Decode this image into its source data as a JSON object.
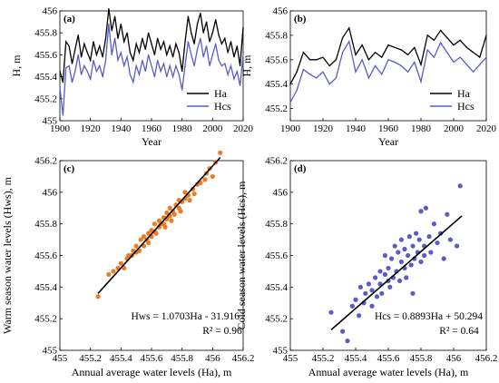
{
  "chart_data": [
    {
      "panel": "(a)",
      "type": "line",
      "xlabel": "Year",
      "ylabel": "H, m",
      "xlim": [
        1900,
        2020
      ],
      "ylim": [
        455,
        456
      ],
      "xticks": [
        1900,
        1920,
        1940,
        1960,
        1980,
        2000,
        2020
      ],
      "yticks": [
        455,
        455.2,
        455.4,
        455.6,
        455.8,
        456
      ],
      "legend_position": "bottom-right",
      "series": [
        {
          "name": "Ha",
          "color": "#000000",
          "x": [
            1900,
            1902,
            1904,
            1906,
            1908,
            1910,
            1912,
            1914,
            1916,
            1918,
            1920,
            1922,
            1924,
            1926,
            1928,
            1930,
            1932,
            1934,
            1936,
            1938,
            1940,
            1942,
            1944,
            1946,
            1948,
            1950,
            1952,
            1954,
            1956,
            1958,
            1960,
            1962,
            1964,
            1966,
            1968,
            1970,
            1972,
            1974,
            1976,
            1978,
            1980,
            1982,
            1984,
            1986,
            1988,
            1990,
            1992,
            1994,
            1996,
            1998,
            2000,
            2002,
            2004,
            2006,
            2008,
            2010,
            2012,
            2014,
            2016,
            2018,
            2020
          ],
          "values": [
            455.45,
            455.35,
            455.72,
            455.68,
            455.52,
            455.65,
            455.78,
            455.58,
            455.7,
            455.62,
            455.55,
            455.72,
            455.6,
            455.68,
            455.58,
            455.75,
            456.02,
            455.82,
            455.95,
            455.75,
            455.88,
            455.72,
            455.8,
            455.62,
            455.55,
            455.7,
            455.62,
            455.75,
            455.65,
            455.8,
            455.7,
            455.6,
            455.75,
            455.65,
            455.72,
            455.6,
            455.68,
            455.58,
            455.7,
            455.62,
            455.45,
            455.72,
            455.95,
            455.8,
            455.7,
            455.88,
            455.98,
            455.8,
            455.9,
            455.72,
            455.8,
            455.92,
            455.78,
            455.7,
            455.75,
            455.62,
            455.72,
            455.58,
            455.68,
            455.5,
            455.85
          ]
        },
        {
          "name": "Hcs",
          "color": "#5b5bc7",
          "x": [
            1900,
            1902,
            1904,
            1906,
            1908,
            1910,
            1912,
            1914,
            1916,
            1918,
            1920,
            1922,
            1924,
            1926,
            1928,
            1930,
            1932,
            1934,
            1936,
            1938,
            1940,
            1942,
            1944,
            1946,
            1948,
            1950,
            1952,
            1954,
            1956,
            1958,
            1960,
            1962,
            1964,
            1966,
            1968,
            1970,
            1972,
            1974,
            1976,
            1978,
            1980,
            1982,
            1984,
            1986,
            1988,
            1990,
            1992,
            1994,
            1996,
            1998,
            2000,
            2002,
            2004,
            2006,
            2008,
            2010,
            2012,
            2014,
            2016,
            2018,
            2020
          ],
          "values": [
            455.3,
            455.05,
            455.48,
            455.5,
            455.35,
            455.45,
            455.6,
            455.42,
            455.5,
            455.45,
            455.38,
            455.55,
            455.45,
            455.5,
            455.4,
            455.55,
            455.88,
            455.6,
            455.75,
            455.55,
            455.62,
            455.5,
            455.58,
            455.42,
            455.35,
            455.5,
            455.42,
            455.55,
            455.45,
            455.6,
            455.5,
            455.4,
            455.55,
            455.45,
            455.52,
            455.4,
            455.5,
            455.4,
            455.5,
            455.42,
            455.28,
            455.5,
            455.72,
            455.6,
            455.5,
            455.65,
            455.75,
            455.58,
            455.68,
            455.5,
            455.6,
            455.7,
            455.55,
            455.5,
            455.52,
            455.42,
            455.5,
            455.38,
            455.45,
            455.32,
            455.6
          ]
        }
      ]
    },
    {
      "panel": "(b)",
      "type": "line",
      "xlabel": "Year",
      "ylabel": "H, m",
      "xlim": [
        1900,
        2020
      ],
      "ylim": [
        455.1,
        456
      ],
      "xticks": [
        1900,
        1920,
        1940,
        1960,
        1980,
        2000,
        2020
      ],
      "yticks": [
        455.2,
        455.4,
        455.6,
        455.8,
        456
      ],
      "legend_position": "bottom-right",
      "series": [
        {
          "name": "Ha",
          "color": "#000000",
          "x": [
            1900,
            1904,
            1908,
            1912,
            1916,
            1920,
            1924,
            1928,
            1932,
            1936,
            1940,
            1944,
            1948,
            1952,
            1956,
            1960,
            1964,
            1968,
            1972,
            1976,
            1980,
            1984,
            1988,
            1992,
            1996,
            2000,
            2004,
            2008,
            2012,
            2016,
            2020
          ],
          "values": [
            455.4,
            455.5,
            455.66,
            455.6,
            455.6,
            455.62,
            455.55,
            455.6,
            455.78,
            455.86,
            455.64,
            455.72,
            455.6,
            455.66,
            455.62,
            455.72,
            455.7,
            455.68,
            455.64,
            455.7,
            455.56,
            455.8,
            455.76,
            455.84,
            455.78,
            455.72,
            455.76,
            455.7,
            455.66,
            455.62,
            455.8
          ]
        },
        {
          "name": "Hcs",
          "color": "#5b5bc7",
          "x": [
            1900,
            1904,
            1908,
            1912,
            1916,
            1920,
            1924,
            1928,
            1932,
            1936,
            1940,
            1944,
            1948,
            1952,
            1956,
            1960,
            1964,
            1968,
            1972,
            1976,
            1980,
            1984,
            1988,
            1992,
            1996,
            2000,
            2004,
            2008,
            2012,
            2016,
            2020
          ],
          "values": [
            455.25,
            455.35,
            455.52,
            455.48,
            455.45,
            455.5,
            455.4,
            455.45,
            455.66,
            455.75,
            455.5,
            455.6,
            455.45,
            455.55,
            455.48,
            455.6,
            455.58,
            455.55,
            455.5,
            455.58,
            455.42,
            455.68,
            455.62,
            455.74,
            455.66,
            455.58,
            455.62,
            455.56,
            455.5,
            455.56,
            455.62
          ]
        }
      ]
    },
    {
      "panel": "(c)",
      "type": "scatter",
      "xlabel": "Annual average water levels (Ha), m",
      "ylabel": "Warm season water levels (Hws), m",
      "xlim": [
        455,
        456.2
      ],
      "ylim": [
        455,
        456.2
      ],
      "xticks": [
        455,
        455.2,
        455.4,
        455.6,
        455.8,
        456,
        456.2
      ],
      "yticks": [
        455,
        455.2,
        455.4,
        455.6,
        455.8,
        456,
        456.2
      ],
      "color": "#ee7a22",
      "equation": "Hws = 1.0703Ha - 31.916",
      "r2": "R² = 0.96",
      "fit": {
        "x": [
          455.25,
          456.05
        ],
        "y": [
          455.36,
          456.22
        ]
      },
      "x": [
        455.25,
        455.32,
        455.35,
        455.38,
        455.4,
        455.42,
        455.44,
        455.45,
        455.47,
        455.48,
        455.5,
        455.5,
        455.52,
        455.53,
        455.55,
        455.55,
        455.57,
        455.58,
        455.58,
        455.6,
        455.6,
        455.62,
        455.62,
        455.63,
        455.65,
        455.65,
        455.66,
        455.68,
        455.68,
        455.69,
        455.7,
        455.7,
        455.72,
        455.72,
        455.73,
        455.74,
        455.75,
        455.76,
        455.78,
        455.78,
        455.79,
        455.8,
        455.82,
        455.82,
        455.84,
        455.85,
        455.87,
        455.88,
        455.9,
        455.92,
        455.95,
        455.96,
        455.98,
        456.0,
        456.02,
        456.05
      ],
      "y": [
        455.34,
        455.48,
        455.5,
        455.52,
        455.55,
        455.52,
        455.58,
        455.6,
        455.6,
        455.63,
        455.62,
        455.66,
        455.63,
        455.7,
        455.66,
        455.72,
        455.7,
        455.74,
        455.68,
        455.72,
        455.76,
        455.75,
        455.8,
        455.74,
        455.78,
        455.82,
        455.8,
        455.8,
        455.84,
        455.78,
        455.83,
        455.87,
        455.85,
        455.9,
        455.82,
        455.88,
        455.86,
        455.92,
        455.9,
        455.95,
        455.88,
        455.94,
        455.96,
        456.0,
        455.98,
        455.95,
        456.02,
        455.99,
        456.05,
        456.06,
        456.08,
        456.12,
        456.15,
        456.1,
        456.19,
        456.25
      ]
    },
    {
      "panel": "(d)",
      "type": "scatter",
      "xlabel": "Annual average water levels (Ha), m",
      "ylabel": "Cold season water levels (Hcs), m",
      "xlim": [
        455,
        456.2
      ],
      "ylim": [
        455,
        456.2
      ],
      "xticks": [
        455,
        455.2,
        455.4,
        455.6,
        455.8,
        456,
        456.2
      ],
      "yticks": [
        455,
        455.2,
        455.4,
        455.6,
        455.8,
        456,
        456.2
      ],
      "color": "#5b5bc7",
      "equation": "Hcs = 0.8893Ha + 50.294",
      "r2": "R² = 0.64",
      "fit": {
        "x": [
          455.25,
          456.05
        ],
        "y": [
          455.13,
          455.85
        ]
      },
      "x": [
        455.25,
        455.32,
        455.35,
        455.38,
        455.4,
        455.42,
        455.43,
        455.45,
        455.46,
        455.48,
        455.5,
        455.5,
        455.52,
        455.53,
        455.55,
        455.55,
        455.56,
        455.58,
        455.58,
        455.6,
        455.6,
        455.61,
        455.62,
        455.63,
        455.64,
        455.65,
        455.66,
        455.67,
        455.68,
        455.68,
        455.7,
        455.7,
        455.71,
        455.72,
        455.73,
        455.74,
        455.75,
        455.75,
        455.76,
        455.77,
        455.78,
        455.79,
        455.8,
        455.8,
        455.82,
        455.82,
        455.83,
        455.85,
        455.86,
        455.88,
        455.9,
        455.92,
        455.94,
        455.96,
        455.98,
        456.02,
        456.04
      ],
      "y": [
        455.24,
        455.12,
        455.06,
        455.28,
        455.32,
        455.22,
        455.4,
        455.3,
        455.36,
        455.42,
        455.28,
        455.38,
        455.46,
        455.34,
        455.42,
        455.5,
        455.36,
        455.48,
        455.6,
        455.44,
        455.52,
        455.4,
        455.58,
        455.46,
        455.66,
        455.5,
        455.62,
        455.44,
        455.56,
        455.7,
        455.52,
        455.64,
        455.46,
        455.6,
        455.72,
        455.54,
        455.66,
        455.36,
        455.58,
        455.74,
        455.62,
        455.7,
        455.56,
        455.88,
        455.66,
        455.6,
        455.9,
        455.72,
        455.62,
        455.8,
        455.68,
        455.74,
        455.58,
        455.86,
        455.7,
        455.66,
        456.04
      ]
    }
  ]
}
